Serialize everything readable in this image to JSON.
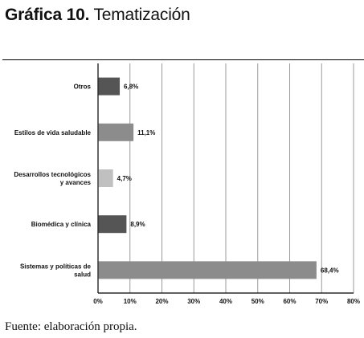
{
  "heading": {
    "number_label": "Gráfica 10.",
    "title": "Tematización"
  },
  "source_note": "Fuente: elaboración propia.",
  "chart_data": {
    "type": "bar",
    "orientation": "horizontal",
    "categories": [
      "Otros",
      "Estilos de vida saludable",
      "Desarrollos tecnológicos y avances",
      "Biomédica y clínica",
      "Sistemas y políticas de salud"
    ],
    "category_lines": [
      [
        "Otros"
      ],
      [
        "Estilos de vida saludable"
      ],
      [
        "Desarrollos tecnológicos",
        "y avances"
      ],
      [
        "Biomédica y clínica"
      ],
      [
        "Sistemas y políticas de",
        "salud"
      ]
    ],
    "values": [
      6.8,
      11.1,
      4.7,
      8.9,
      68.4
    ],
    "value_labels": [
      "6,8%",
      "11,1%",
      "4,7%",
      "8,9%",
      "68,4%"
    ],
    "bar_colors": [
      "#555555",
      "#8c8c8c",
      "#c0c0c0",
      "#555555",
      "#8c8c8c"
    ],
    "xlim": [
      0,
      80
    ],
    "xticks": [
      0,
      10,
      20,
      30,
      40,
      50,
      60,
      70,
      80
    ],
    "xtick_labels": [
      "0%",
      "10%",
      "20%",
      "30%",
      "40%",
      "50%",
      "60%",
      "70%",
      "80%"
    ],
    "grid": "vertical",
    "grid_color": "#9a9a9a",
    "title": "Tematización",
    "xlabel": "",
    "ylabel": ""
  }
}
